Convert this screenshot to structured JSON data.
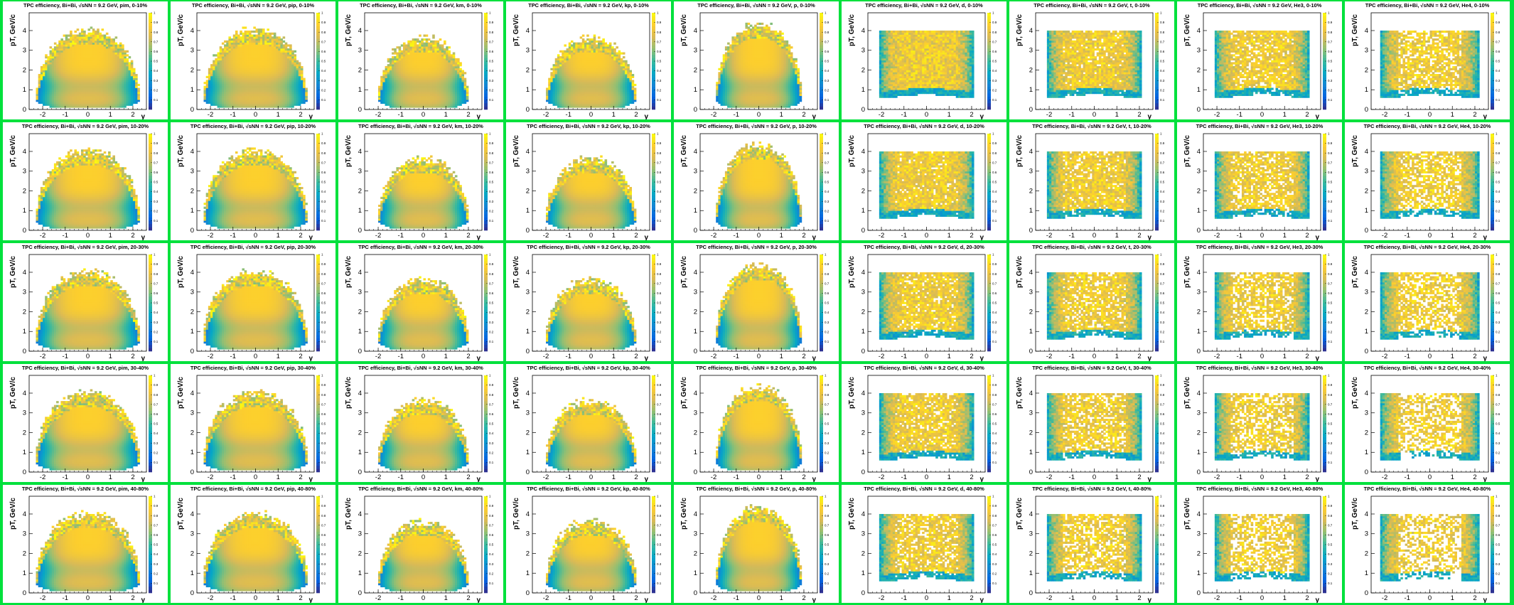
{
  "panel_title_template": "TPC efficiency, Bi+Bi, √sNN = 9.2 GeV, {particle}, {centrality}",
  "chart_data": {
    "type": "heatmap",
    "layout": {
      "rows": 5,
      "cols": 9
    },
    "quantity": "TPC efficiency",
    "system": "Bi+Bi",
    "energy": "9.2 GeV",
    "particles": [
      "pim",
      "pip",
      "km",
      "kp",
      "p",
      "d",
      "t",
      "He3",
      "He4"
    ],
    "centralities": [
      "0-10%",
      "10-20%",
      "20-30%",
      "30-40%",
      "40-80%"
    ],
    "xlabel": "y",
    "ylabel": "pT, GeV/c",
    "xlim": [
      -2.6,
      2.6
    ],
    "ylim": [
      0,
      4.9
    ],
    "x_ticks": [
      "-2",
      "-1",
      "0",
      "1",
      "2"
    ],
    "y_ticks": [
      "0",
      "1",
      "2",
      "3",
      "4"
    ],
    "z_range": [
      0,
      1
    ],
    "z_ticks": [
      "0.1",
      "0.2",
      "0.3",
      "0.4",
      "0.5",
      "0.6",
      "0.7",
      "0.8",
      "0.9",
      "1"
    ],
    "colormap": [
      "#352a87",
      "#0363e1",
      "#1485d4",
      "#06a7c6",
      "#38b99e",
      "#92bf73",
      "#d9ba56",
      "#fcce2e",
      "#f9fb0e"
    ],
    "acceptance": {
      "pim": {
        "y_halfwidth": 2.3,
        "pt_max_center": 3.6
      },
      "pip": {
        "y_halfwidth": 2.3,
        "pt_max_center": 3.6
      },
      "km": {
        "y_halfwidth": 2.0,
        "pt_max_center": 3.2
      },
      "kp": {
        "y_halfwidth": 2.0,
        "pt_max_center": 3.2
      },
      "p": {
        "y_halfwidth": 1.9,
        "pt_max_center": 3.9
      },
      "d": {
        "y_halfwidth": 2.1,
        "pt_max_center": 4.0
      },
      "t": {
        "y_halfwidth": 2.1,
        "pt_max_center": 4.0
      },
      "He3": {
        "y_halfwidth": 2.1,
        "pt_max_center": 4.0
      },
      "He4": {
        "y_halfwidth": 2.2,
        "pt_max_center": 4.0
      }
    },
    "grid": false
  }
}
